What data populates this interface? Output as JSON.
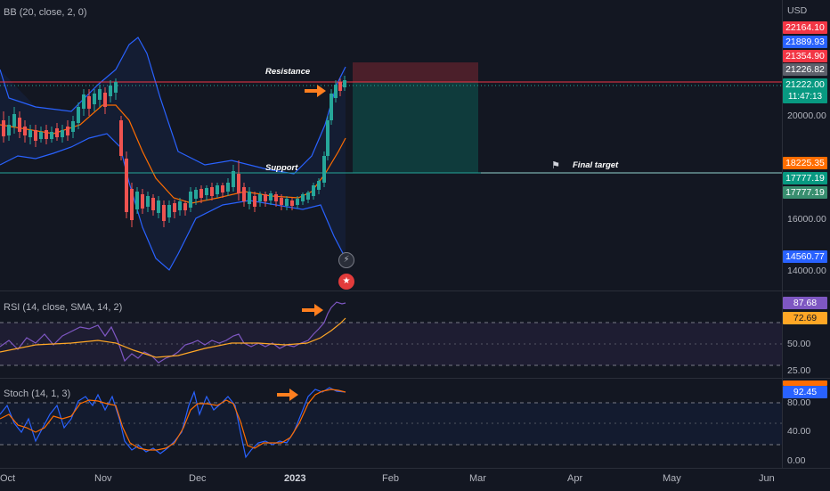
{
  "indicators": {
    "bb_label": "BB (20, close, 2, 0)",
    "rsi_label": "RSI (14, close, SMA, 14, 2)",
    "stoch_label": "Stoch (14, 1, 3)"
  },
  "price_axis": {
    "currency": "USD",
    "ticks": [
      "20000.00",
      "16000.00",
      "14000.00"
    ],
    "tags": {
      "bb_upper": "22164.10",
      "high": "21889.93",
      "basis": "21354.90",
      "close_a": "21226.82",
      "last_price": "21222.00",
      "countdown": "11:47:13",
      "target": "18225.35",
      "support_a": "17777.19",
      "support_b": "17777.19",
      "bb_lower": "14560.77"
    }
  },
  "rsi_axis": {
    "ticks": [
      "50.00",
      "25.00"
    ],
    "tags": {
      "rsi": "87.68",
      "rsi_ma": "72.69"
    }
  },
  "stoch_axis": {
    "ticks": [
      "80.00",
      "40.00",
      "0.00"
    ],
    "tags": {
      "k": "92.45"
    }
  },
  "annotations": {
    "resistance": "Resistance",
    "support": "Support",
    "final_target": "Final target"
  },
  "time_axis": [
    "Oct",
    "Nov",
    "Dec",
    "2023",
    "Feb",
    "Mar",
    "Apr",
    "May",
    "Jun"
  ],
  "colors": {
    "background": "#131722",
    "up": "#26a69a",
    "down": "#ef5350",
    "bb_band": "#2962ff",
    "basis": "#ff6d00",
    "resistance_line": "#f23645",
    "support_line": "#26a69a",
    "arrow": "#ff7f1f",
    "rsi": "#7e57c2",
    "stoch_d": "#ff6d00"
  }
}
